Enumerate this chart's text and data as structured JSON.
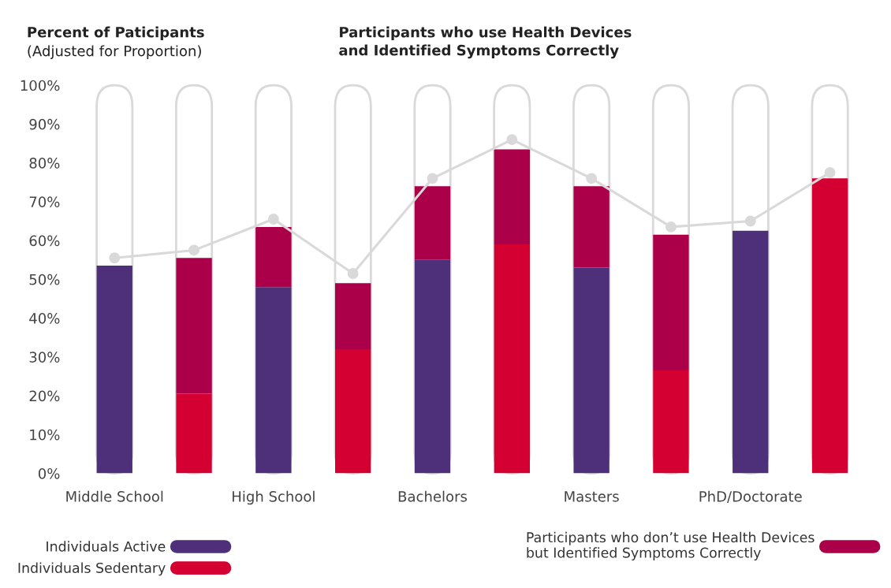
{
  "chart_data": {
    "type": "bar",
    "title": "Participants who use Health Devices\nand Identified Symptoms Correctly",
    "ylabel": "Percent of Paticipants\n(Adjusted for Proportion)",
    "categories": [
      "Middle School",
      null,
      "High School",
      null,
      "Bachelors",
      null,
      "Masters",
      null,
      "PhD/Doctorate",
      null
    ],
    "series": [
      {
        "name": "Individuals Active",
        "color": "#4e2f7a",
        "values": [
          53.5,
          null,
          48,
          null,
          55,
          null,
          53,
          null,
          62.5,
          null
        ]
      },
      {
        "name": "Individuals Sedentary",
        "color": "#d50032",
        "values": [
          null,
          20.5,
          null,
          32,
          null,
          59,
          null,
          26.5,
          null,
          76
        ]
      },
      {
        "name": "Participants who don’t use Health Devices\nbut Identified Symptoms Correctly",
        "color": "#ab0049",
        "values": [
          null,
          35,
          15.5,
          17,
          19,
          24.5,
          21,
          35,
          null,
          null
        ]
      },
      {
        "type": "line",
        "color": "#d9d9d9",
        "marker": "circle",
        "values": [
          55.5,
          57.5,
          65.5,
          51.5,
          76,
          86,
          76,
          63.5,
          65,
          77.5
        ]
      }
    ],
    "stacked": true,
    "ylim": [
      0,
      100
    ],
    "yticks": [
      {
        "value": 0,
        "label": "0%"
      },
      {
        "value": 10,
        "label": "10%"
      },
      {
        "value": 20,
        "label": "20%"
      },
      {
        "value": 30,
        "label": "30%"
      },
      {
        "value": 40,
        "label": "40%"
      },
      {
        "value": 50,
        "label": "50%"
      },
      {
        "value": 60,
        "label": "60%"
      },
      {
        "value": 70,
        "label": "70%"
      },
      {
        "value": 80,
        "label": "80%"
      },
      {
        "value": 90,
        "label": "90%"
      },
      {
        "value": 100,
        "label": "100%"
      }
    ],
    "grid": false,
    "legend": "bottom"
  }
}
